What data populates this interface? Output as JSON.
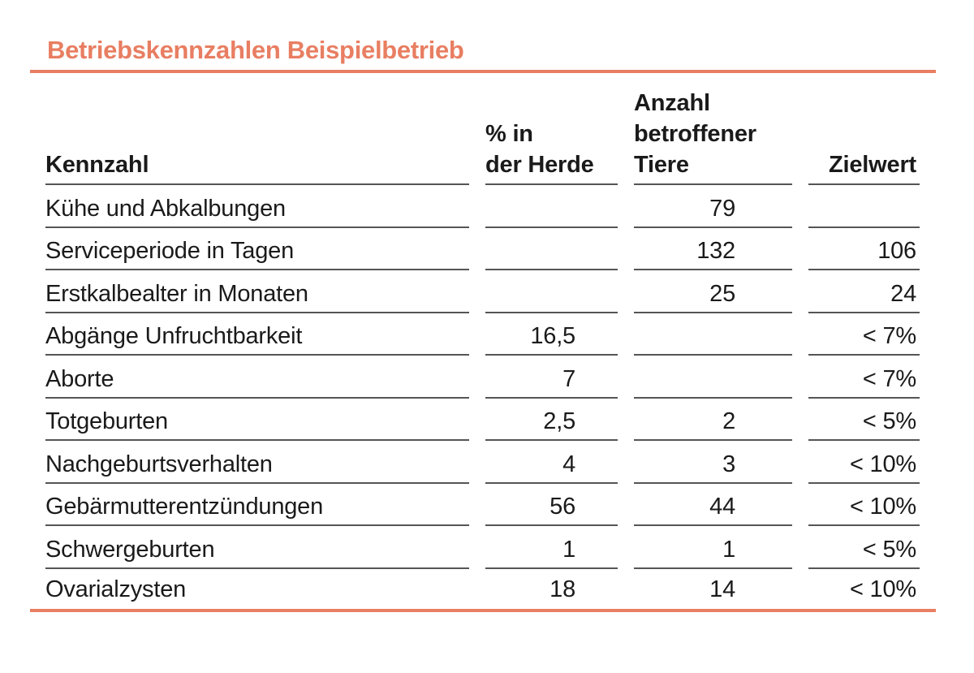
{
  "accent_color": "#E87E62",
  "title": "Betriebskennzahlen Beispielbetrieb",
  "table": {
    "columns": [
      {
        "lines": [
          "Kennzahl"
        ]
      },
      {
        "lines": [
          "% in",
          "der Herde"
        ]
      },
      {
        "lines": [
          "Anzahl",
          "betroffener",
          "Tiere"
        ]
      },
      {
        "lines": [
          "Zielwert"
        ]
      }
    ],
    "rows": [
      {
        "kennzahl": "Kühe und Abkalbungen",
        "prozent_herde": "",
        "anzahl_tiere": "79",
        "zielwert": ""
      },
      {
        "kennzahl": "Serviceperiode in Tagen",
        "prozent_herde": "",
        "anzahl_tiere": "132",
        "zielwert": "106"
      },
      {
        "kennzahl": "Erstkalbealter in Monaten",
        "prozent_herde": "",
        "anzahl_tiere": "25",
        "zielwert": "24"
      },
      {
        "kennzahl": "Abgänge Unfruchtbarkeit",
        "prozent_herde": "16,5",
        "anzahl_tiere": "",
        "zielwert": "< 7%"
      },
      {
        "kennzahl": "Aborte",
        "prozent_herde": "7",
        "anzahl_tiere": "",
        "zielwert": "< 7%"
      },
      {
        "kennzahl": "Totgeburten",
        "prozent_herde": "2,5",
        "anzahl_tiere": "2",
        "zielwert": "< 5%"
      },
      {
        "kennzahl": "Nachgeburtsverhalten",
        "prozent_herde": "4",
        "anzahl_tiere": "3",
        "zielwert": "< 10%"
      },
      {
        "kennzahl": "Gebärmutterentzündungen",
        "prozent_herde": "56",
        "anzahl_tiere": "44",
        "zielwert": "< 10%"
      },
      {
        "kennzahl": "Schwergeburten",
        "prozent_herde": "1",
        "anzahl_tiere": "1",
        "zielwert": "< 5%"
      },
      {
        "kennzahl": "Ovarialzysten",
        "prozent_herde": "18",
        "anzahl_tiere": "14",
        "zielwert": "< 10%"
      }
    ]
  }
}
